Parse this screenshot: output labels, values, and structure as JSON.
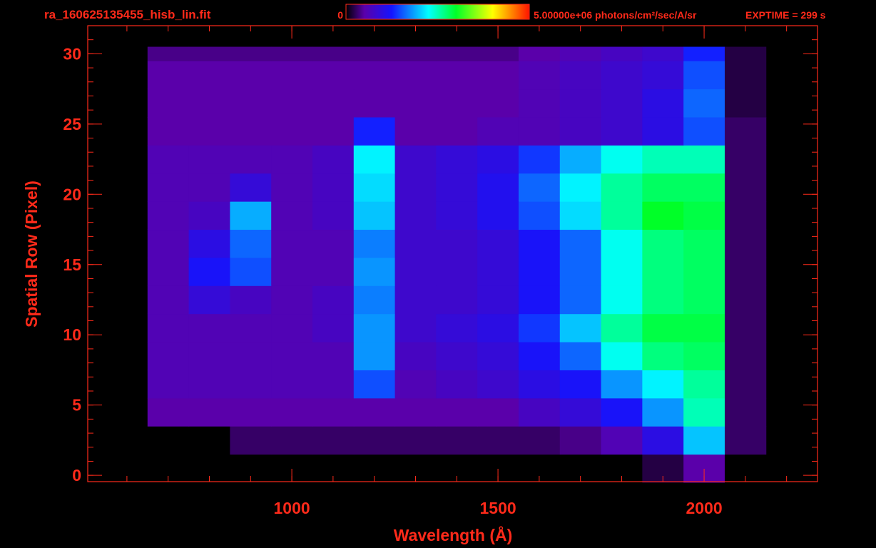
{
  "chart_data": {
    "type": "heatmap",
    "title": "ra_160625135455_hisb_lin.fit",
    "exposure": "EXPTIME = 299 s",
    "x_label": "Wavelength (Å)",
    "y_label": "Spatial Row (Pixel)",
    "xlim": [
      505,
      2275
    ],
    "ylim": [
      -0.45,
      32
    ],
    "xticks": [
      1000,
      1500,
      2000
    ],
    "yticks": [
      0,
      5,
      10,
      15,
      20,
      25,
      30
    ],
    "x_minor_ticks": [
      600,
      700,
      800,
      900,
      1000,
      1100,
      1200,
      1300,
      1400,
      1500,
      1600,
      1700,
      1800,
      1900,
      2000,
      2100,
      2200
    ],
    "y_minor_ticks": [
      0,
      1,
      2,
      3,
      4,
      5,
      6,
      7,
      8,
      9,
      10,
      11,
      12,
      13,
      14,
      15,
      16,
      17,
      18,
      19,
      20,
      21,
      22,
      23,
      24,
      25,
      26,
      27,
      28,
      29,
      30,
      31
    ],
    "frame_color": "#ff2a1a",
    "colorbar": {
      "clim": [
        0,
        5000000
      ],
      "ticks": [
        0,
        {
          "value": 5000000,
          "label": "5.00000e+06"
        }
      ],
      "unit": "photons/cm²/sec/A/sr"
    },
    "x_bins": [
      650,
      750,
      850,
      950,
      1050,
      1150,
      1250,
      1350,
      1450,
      1550,
      1650,
      1750,
      1850,
      1950,
      2050,
      2150
    ],
    "y_bins": [
      -0.5,
      1.5,
      3.5,
      5.5,
      7.5,
      9.5,
      11.5,
      13.5,
      15.5,
      17.5,
      19.5,
      21.5,
      23.5,
      25.5,
      27.5,
      29.5,
      30.5
    ],
    "values": [
      [
        0,
        0,
        0,
        0,
        0,
        0,
        0,
        0,
        0,
        0,
        0,
        0,
        200000.0,
        500000.0,
        0
      ],
      [
        0,
        0,
        300000.0,
        300000.0,
        300000.0,
        300000.0,
        300000.0,
        300000.0,
        300000.0,
        300000.0,
        400000.0,
        600000.0,
        1000000.0,
        2000000.0,
        300000.0
      ],
      [
        500000.0,
        500000.0,
        500000.0,
        500000.0,
        500000.0,
        500000.0,
        500000.0,
        500000.0,
        500000.0,
        700000.0,
        900000.0,
        1200000.0,
        1800000.0,
        2500000.0,
        300000.0
      ],
      [
        600000.0,
        600000.0,
        600000.0,
        600000.0,
        600000.0,
        1500000.0,
        600000.0,
        700000.0,
        800000.0,
        1000000.0,
        1200000.0,
        1800000.0,
        2200000.0,
        2600000.0,
        300000.0
      ],
      [
        600000.0,
        600000.0,
        600000.0,
        600000.0,
        600000.0,
        1800000.0,
        700000.0,
        800000.0,
        900000.0,
        1200000.0,
        1600000.0,
        2300000.0,
        2700000.0,
        2800000.0,
        300000.0
      ],
      [
        600000.0,
        600000.0,
        600000.0,
        600000.0,
        700000.0,
        1800000.0,
        800000.0,
        900000.0,
        1000000.0,
        1400000.0,
        2000000.0,
        2600000.0,
        2900000.0,
        2900000.0,
        300000.0
      ],
      [
        600000.0,
        900000.0,
        700000.0,
        600000.0,
        700000.0,
        1700000.0,
        800000.0,
        800000.0,
        900000.0,
        1200000.0,
        1600000.0,
        2300000.0,
        2700000.0,
        2800000.0,
        300000.0
      ],
      [
        600000.0,
        1200000.0,
        1500000.0,
        600000.0,
        600000.0,
        1800000.0,
        800000.0,
        800000.0,
        900000.0,
        1200000.0,
        1600000.0,
        2300000.0,
        2700000.0,
        2800000.0,
        300000.0
      ],
      [
        600000.0,
        1000000.0,
        1600000.0,
        600000.0,
        600000.0,
        1700000.0,
        800000.0,
        800000.0,
        900000.0,
        1200000.0,
        1600000.0,
        2300000.0,
        2700000.0,
        2800000.0,
        300000.0
      ],
      [
        600000.0,
        700000.0,
        1900000.0,
        600000.0,
        700000.0,
        2000000.0,
        800000.0,
        900000.0,
        1100000.0,
        1500000.0,
        2100000.0,
        2600000.0,
        3000000.0,
        2900000.0,
        300000.0
      ],
      [
        600000.0,
        600000.0,
        900000.0,
        600000.0,
        700000.0,
        2100000.0,
        800000.0,
        900000.0,
        1100000.0,
        1600000.0,
        2200000.0,
        2600000.0,
        2800000.0,
        2800000.0,
        300000.0
      ],
      [
        600000.0,
        600000.0,
        600000.0,
        600000.0,
        700000.0,
        2200000.0,
        800000.0,
        900000.0,
        1000000.0,
        1400000.0,
        1900000.0,
        2300000.0,
        2500000.0,
        2500000.0,
        300000.0
      ],
      [
        500000.0,
        500000.0,
        500000.0,
        500000.0,
        500000.0,
        1300000.0,
        500000.0,
        500000.0,
        600000.0,
        600000.0,
        700000.0,
        800000.0,
        1000000.0,
        1500000.0,
        300000.0
      ],
      [
        500000.0,
        500000.0,
        500000.0,
        500000.0,
        500000.0,
        500000.0,
        500000.0,
        500000.0,
        500000.0,
        600000.0,
        700000.0,
        800000.0,
        1000000.0,
        1600000.0,
        200000.0
      ],
      [
        500000.0,
        500000.0,
        500000.0,
        500000.0,
        500000.0,
        500000.0,
        500000.0,
        500000.0,
        500000.0,
        600000.0,
        700000.0,
        800000.0,
        900000.0,
        1500000.0,
        200000.0
      ],
      [
        400000.0,
        400000.0,
        400000.0,
        400000.0,
        400000.0,
        400000.0,
        400000.0,
        400000.0,
        400000.0,
        500000.0,
        600000.0,
        700000.0,
        800000.0,
        1300000.0,
        200000.0
      ]
    ]
  }
}
